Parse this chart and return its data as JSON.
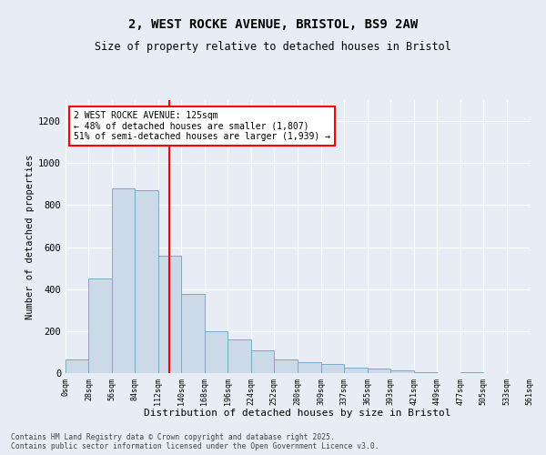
{
  "title_line1": "2, WEST ROCKE AVENUE, BRISTOL, BS9 2AW",
  "title_line2": "Size of property relative to detached houses in Bristol",
  "xlabel": "Distribution of detached houses by size in Bristol",
  "ylabel": "Number of detached properties",
  "bar_color": "#ccd9e8",
  "bar_edge_color": "#7aaac8",
  "background_color": "#e8edf5",
  "red_line_x": 125,
  "annotation_title": "2 WEST ROCKE AVENUE: 125sqm",
  "annotation_line2": "← 48% of detached houses are smaller (1,807)",
  "annotation_line3": "51% of semi-detached houses are larger (1,939) →",
  "bins": [
    0,
    28,
    56,
    84,
    112,
    140,
    168,
    196,
    224,
    252,
    280,
    309,
    337,
    365,
    393,
    421,
    449,
    477,
    505,
    533,
    561
  ],
  "counts": [
    63,
    450,
    880,
    870,
    560,
    375,
    200,
    160,
    110,
    65,
    50,
    45,
    28,
    20,
    12,
    5,
    0,
    5,
    0,
    2
  ],
  "ylim": [
    0,
    1300
  ],
  "yticks": [
    0,
    200,
    400,
    600,
    800,
    1000,
    1200
  ],
  "footer_line1": "Contains HM Land Registry data © Crown copyright and database right 2025.",
  "footer_line2": "Contains public sector information licensed under the Open Government Licence v3.0."
}
